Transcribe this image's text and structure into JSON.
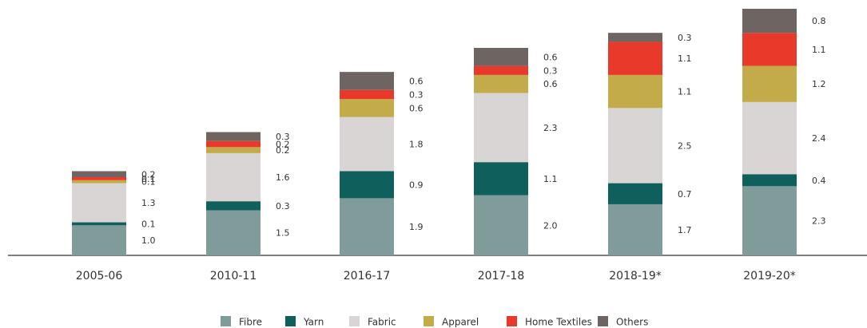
{
  "chart_data": {
    "type": "stacked_bar",
    "categories": [
      "2005-06",
      "2010-11",
      "2016-17",
      "2017-18",
      "2018-19*",
      "2019-20*"
    ],
    "series": [
      {
        "name": "Fibre",
        "color": "#7f9c9b",
        "values": [
          1.0,
          1.5,
          1.9,
          2.0,
          1.7,
          2.3
        ],
        "value_labels": [
          "1.0",
          "1.5",
          "1.9",
          "2.0",
          "1.7",
          "2.3"
        ]
      },
      {
        "name": "Yarn",
        "color": "#0f5f5c",
        "values": [
          0.1,
          0.3,
          0.9,
          1.1,
          0.7,
          0.4
        ],
        "value_labels": [
          "0.1",
          "0.3",
          "0.9",
          "1.1",
          "0.7",
          "0.4"
        ]
      },
      {
        "name": "Fabric",
        "color": "#d9d5d4",
        "values": [
          1.3,
          1.6,
          1.8,
          2.3,
          2.5,
          2.4
        ],
        "value_labels": [
          "1.3",
          "1.6",
          "1.8",
          "2.3",
          "2.5",
          "2.4"
        ]
      },
      {
        "name": "Apparel",
        "color": "#c2ab48",
        "values": [
          0.1,
          0.2,
          0.6,
          0.6,
          1.1,
          1.2
        ],
        "value_labels": [
          "0.1",
          "0.2",
          "0.6",
          "0.6",
          "1.1",
          "1.2"
        ]
      },
      {
        "name": "Home Textiles",
        "color": "#e8392a",
        "values": [
          0.1,
          0.2,
          0.3,
          0.3,
          1.1,
          1.1
        ],
        "value_labels": [
          "0.1",
          "0.2",
          "0.3",
          "0.3",
          "1.1",
          "1.1"
        ]
      },
      {
        "name": "Others",
        "color": "#6e6563",
        "values": [
          0.2,
          0.3,
          0.6,
          0.6,
          0.3,
          0.8
        ],
        "value_labels": [
          "0.2",
          "0.3",
          "0.6",
          "0.6",
          "0.3",
          "0.8"
        ]
      }
    ]
  }
}
